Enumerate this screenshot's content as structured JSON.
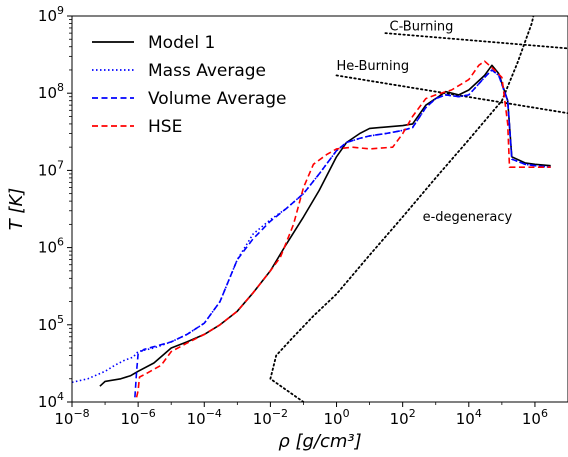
{
  "chart_data": {
    "type": "line",
    "title": "",
    "xlabel": "ρ  [g/cm³]",
    "ylabel": "T  [K]",
    "xscale": "log",
    "yscale": "log",
    "xlim": [
      1e-08,
      10000000.0
    ],
    "ylim": [
      10000.0,
      1000000000.0
    ],
    "grid": false,
    "legend": "top-left",
    "x_ticks": [
      {
        "base": "10",
        "exp": "−8",
        "value": 1e-08
      },
      {
        "base": "10",
        "exp": "−6",
        "value": 1e-06
      },
      {
        "base": "10",
        "exp": "−4",
        "value": 0.0001
      },
      {
        "base": "10",
        "exp": "−2",
        "value": 0.01
      },
      {
        "base": "10",
        "exp": "0",
        "value": 1
      },
      {
        "base": "10",
        "exp": "2",
        "value": 100.0
      },
      {
        "base": "10",
        "exp": "4",
        "value": 10000.0
      },
      {
        "base": "10",
        "exp": "6",
        "value": 1000000.0
      }
    ],
    "y_ticks": [
      {
        "base": "10",
        "exp": "4",
        "value": 10000.0
      },
      {
        "base": "10",
        "exp": "5",
        "value": 100000.0
      },
      {
        "base": "10",
        "exp": "6",
        "value": 1000000.0
      },
      {
        "base": "10",
        "exp": "7",
        "value": 10000000.0
      },
      {
        "base": "10",
        "exp": "8",
        "value": 100000000.0
      },
      {
        "base": "10",
        "exp": "9",
        "value": 1000000000.0
      }
    ],
    "series": [
      {
        "name": "Model 1",
        "color": "#000000",
        "dash": "solid",
        "points": [
          [
            7e-08,
            16000.0
          ],
          [
            1e-07,
            18500.0
          ],
          [
            3e-07,
            20000.0
          ],
          [
            6e-07,
            22000.0
          ],
          [
            1e-06,
            25000.0
          ],
          [
            3e-06,
            32000.0
          ],
          [
            1e-05,
            50000.0
          ],
          [
            3e-05,
            60000.0
          ],
          [
            0.0001,
            75000.0
          ],
          [
            0.0003,
            100000.0
          ],
          [
            0.001,
            150000.0
          ],
          [
            0.003,
            260000.0
          ],
          [
            0.01,
            500000.0
          ],
          [
            0.03,
            1100000.0
          ],
          [
            0.1,
            2500000.0
          ],
          [
            0.3,
            5500000.0
          ],
          [
            1,
            15000000.0
          ],
          [
            2,
            23000000.0
          ],
          [
            5,
            30000000.0
          ],
          [
            10,
            35000000.0
          ],
          [
            100,
            38000000.0
          ],
          [
            200,
            40000000.0
          ],
          [
            500,
            70000000.0
          ],
          [
            1000.0,
            85000000.0
          ],
          [
            2000.0,
            105000000.0
          ],
          [
            5000.0,
            95000000.0
          ],
          [
            10000.0,
            110000000.0
          ],
          [
            30000.0,
            170000000.0
          ],
          [
            50000.0,
            230000000.0
          ],
          [
            80000.0,
            180000000.0
          ],
          [
            150000.0,
            80000000.0
          ],
          [
            200000.0,
            15000000.0
          ],
          [
            500000.0,
            12500000.0
          ],
          [
            1000000.0,
            12000000.0
          ],
          [
            3000000.0,
            11500000.0
          ]
        ]
      },
      {
        "name": "Mass Average",
        "color": "#0000ff",
        "dash": "dotted",
        "points": [
          [
            1e-08,
            18000.0
          ],
          [
            3e-08,
            20000.0
          ],
          [
            1e-07,
            25000.0
          ],
          [
            2e-07,
            30000.0
          ],
          [
            4e-07,
            35000.0
          ],
          [
            7e-07,
            38000.0
          ],
          [
            1e-06,
            45000.0
          ],
          [
            3e-06,
            50000.0
          ],
          [
            1e-05,
            60000.0
          ],
          [
            3e-05,
            75000.0
          ],
          [
            0.0001,
            105000.0
          ],
          [
            0.0003,
            200000.0
          ],
          [
            0.001,
            700000.0
          ],
          [
            0.003,
            1500000.0
          ],
          [
            0.01,
            2300000.0
          ],
          [
            0.03,
            3200000.0
          ],
          [
            0.1,
            5000000.0
          ],
          [
            0.3,
            9000000.0
          ],
          [
            1,
            18000000.0
          ],
          [
            2,
            23000000.0
          ],
          [
            5,
            26000000.0
          ],
          [
            10,
            28000000.0
          ],
          [
            30,
            30000000.0
          ],
          [
            100,
            33000000.0
          ],
          [
            200,
            36000000.0
          ],
          [
            500,
            65000000.0
          ],
          [
            1000.0,
            85000000.0
          ],
          [
            2000.0,
            95000000.0
          ],
          [
            5000.0,
            90000000.0
          ],
          [
            10000.0,
            95000000.0
          ],
          [
            30000.0,
            160000000.0
          ],
          [
            50000.0,
            200000000.0
          ],
          [
            80000.0,
            170000000.0
          ],
          [
            150000.0,
            80000000.0
          ],
          [
            200000.0,
            14000000.0
          ],
          [
            500000.0,
            12000000.0
          ],
          [
            1000000.0,
            11500000.0
          ],
          [
            3000000.0,
            11000000.0
          ]
        ]
      },
      {
        "name": "Volume Average",
        "color": "#0000ff",
        "dash": "dashed",
        "points": [
          [
            8e-07,
            11500.0
          ],
          [
            9e-07,
            25000.0
          ],
          [
            1e-06,
            42000.0
          ],
          [
            1.5e-06,
            48000.0
          ],
          [
            3e-06,
            52000.0
          ],
          [
            1e-05,
            60000.0
          ],
          [
            3e-05,
            75000.0
          ],
          [
            0.0001,
            105000.0
          ],
          [
            0.0003,
            200000.0
          ],
          [
            0.001,
            700000.0
          ],
          [
            0.003,
            1300000.0
          ],
          [
            0.01,
            2200000.0
          ],
          [
            0.03,
            3200000.0
          ],
          [
            0.1,
            5000000.0
          ],
          [
            0.3,
            9000000.0
          ],
          [
            1,
            18000000.0
          ],
          [
            2,
            23000000.0
          ],
          [
            5,
            26000000.0
          ],
          [
            10,
            28000000.0
          ],
          [
            30,
            30000000.0
          ],
          [
            100,
            33000000.0
          ],
          [
            200,
            36000000.0
          ],
          [
            500,
            65000000.0
          ],
          [
            1000.0,
            85000000.0
          ],
          [
            2000.0,
            95000000.0
          ],
          [
            5000.0,
            90000000.0
          ],
          [
            10000.0,
            95000000.0
          ],
          [
            30000.0,
            160000000.0
          ],
          [
            50000.0,
            200000000.0
          ],
          [
            80000.0,
            170000000.0
          ],
          [
            150000.0,
            80000000.0
          ],
          [
            200000.0,
            14000000.0
          ],
          [
            500000.0,
            12000000.0
          ],
          [
            1000000.0,
            11500000.0
          ],
          [
            3000000.0,
            11000000.0
          ]
        ]
      },
      {
        "name": "HSE",
        "color": "#ff0000",
        "dash": "dashed",
        "points": [
          [
            9e-07,
            11500.0
          ],
          [
            1e-06,
            14000.0
          ],
          [
            1.1e-06,
            21000.0
          ],
          [
            2e-06,
            24000.0
          ],
          [
            5e-06,
            30000.0
          ],
          [
            1e-05,
            45000.0
          ],
          [
            3e-05,
            58000.0
          ],
          [
            0.0001,
            75000.0
          ],
          [
            0.0003,
            100000.0
          ],
          [
            0.001,
            150000.0
          ],
          [
            0.003,
            260000.0
          ],
          [
            0.01,
            500000.0
          ],
          [
            0.02,
            750000.0
          ],
          [
            0.05,
            2000000.0
          ],
          [
            0.1,
            6000000.0
          ],
          [
            0.2,
            12000000.0
          ],
          [
            0.5,
            16000000.0
          ],
          [
            1,
            19000000.0
          ],
          [
            3,
            20000000.0
          ],
          [
            10,
            19000000.0
          ],
          [
            50,
            20000000.0
          ],
          [
            100,
            30000000.0
          ],
          [
            200,
            50000000.0
          ],
          [
            500,
            85000000.0
          ],
          [
            1000.0,
            95000000.0
          ],
          [
            3000.0,
            110000000.0
          ],
          [
            10000.0,
            150000000.0
          ],
          [
            20000.0,
            230000000.0
          ],
          [
            30000.0,
            260000000.0
          ],
          [
            60000.0,
            200000000.0
          ],
          [
            100000.0,
            160000000.0
          ],
          [
            150000.0,
            40000000.0
          ],
          [
            170000.0,
            11000000.0
          ],
          [
            500000.0,
            11000000.0
          ],
          [
            3000000.0,
            11000000.0
          ]
        ]
      }
    ],
    "reference_lines": [
      {
        "name": "C-Burning",
        "color": "#000000",
        "points": [
          [
            30,
            600000000.0
          ],
          [
            10000000.0,
            380000000.0
          ]
        ]
      },
      {
        "name": "He-Burning",
        "color": "#000000",
        "points": [
          [
            1,
            170000000.0
          ],
          [
            10000000.0,
            55000000.0
          ]
        ]
      },
      {
        "name": "e-degeneracy",
        "color": "#000000",
        "points": [
          [
            0.1,
            10000.0
          ],
          [
            0.01,
            20000.0
          ],
          [
            0.015,
            40000.0
          ],
          [
            0.05,
            70000.0
          ],
          [
            0.2,
            130000.0
          ],
          [
            1,
            250000.0
          ],
          [
            10,
            800000.0
          ],
          [
            100,
            2500000.0
          ],
          [
            1000.0,
            8000000.0
          ],
          [
            10000.0,
            25000000.0
          ],
          [
            100000.0,
            80000000.0
          ],
          [
            300000.0,
            250000000.0
          ],
          [
            800000.0,
            800000000.0
          ],
          [
            1000000.0,
            1200000000.0
          ]
        ]
      }
    ],
    "annotations": [
      {
        "text": "C-Burning",
        "x": 40,
        "y": 650000000.0
      },
      {
        "text": "He-Burning",
        "x": 1,
        "y": 200000000.0
      },
      {
        "text": "e-degeneracy",
        "x": 400,
        "y": 2200000.0
      }
    ]
  }
}
